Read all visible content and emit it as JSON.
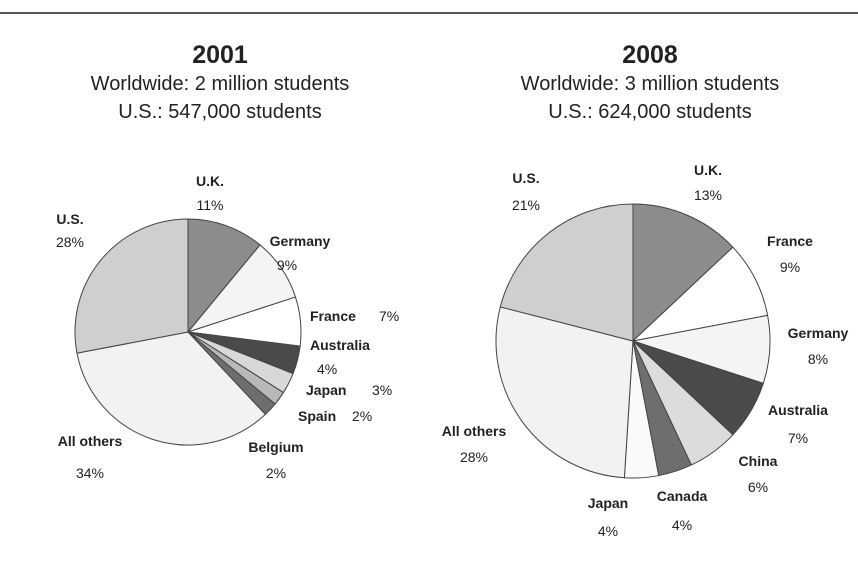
{
  "chart_data": [
    {
      "type": "pie",
      "title": "2001",
      "subtitles": [
        "Worldwide: 2 million students",
        "U.S.: 547,000 students"
      ],
      "slices": [
        {
          "label": "U.K.",
          "value": 11,
          "value_text": "11%",
          "color": "#8c8c8c"
        },
        {
          "label": "Germany",
          "value": 9,
          "value_text": "9%",
          "color": "#f4f4f4"
        },
        {
          "label": "France",
          "value": 7,
          "value_text": "7%",
          "color": "#ffffff"
        },
        {
          "label": "Australia",
          "value": 4,
          "value_text": "4%",
          "color": "#4a4a4a"
        },
        {
          "label": "Japan",
          "value": 3,
          "value_text": "3%",
          "color": "#d8d8d8"
        },
        {
          "label": "Spain",
          "value": 2,
          "value_text": "2%",
          "color": "#b8b8b8"
        },
        {
          "label": "Belgium",
          "value": 2,
          "value_text": "2%",
          "color": "#6e6e6e"
        },
        {
          "label": "All others",
          "value": 34,
          "value_text": "34%",
          "color": "#f2f2f2"
        },
        {
          "label": "U.S.",
          "value": 28,
          "value_text": "28%",
          "color": "#cfcfcf"
        }
      ]
    },
    {
      "type": "pie",
      "title": "2008",
      "subtitles": [
        "Worldwide: 3 million students",
        "U.S.: 624,000 students"
      ],
      "slices": [
        {
          "label": "U.K.",
          "value": 13,
          "value_text": "13%",
          "color": "#8c8c8c"
        },
        {
          "label": "France",
          "value": 9,
          "value_text": "9%",
          "color": "#ffffff"
        },
        {
          "label": "Germany",
          "value": 8,
          "value_text": "8%",
          "color": "#f4f4f4"
        },
        {
          "label": "Australia",
          "value": 7,
          "value_text": "7%",
          "color": "#4a4a4a"
        },
        {
          "label": "China",
          "value": 6,
          "value_text": "6%",
          "color": "#dcdcdc"
        },
        {
          "label": "Canada",
          "value": 4,
          "value_text": "4%",
          "color": "#6e6e6e"
        },
        {
          "label": "Japan",
          "value": 4,
          "value_text": "4%",
          "color": "#fafafa"
        },
        {
          "label": "All others",
          "value": 28,
          "value_text": "28%",
          "color": "#f2f2f2"
        },
        {
          "label": "U.S.",
          "value": 21,
          "value_text": "21%",
          "color": "#cfcfcf"
        }
      ]
    }
  ]
}
